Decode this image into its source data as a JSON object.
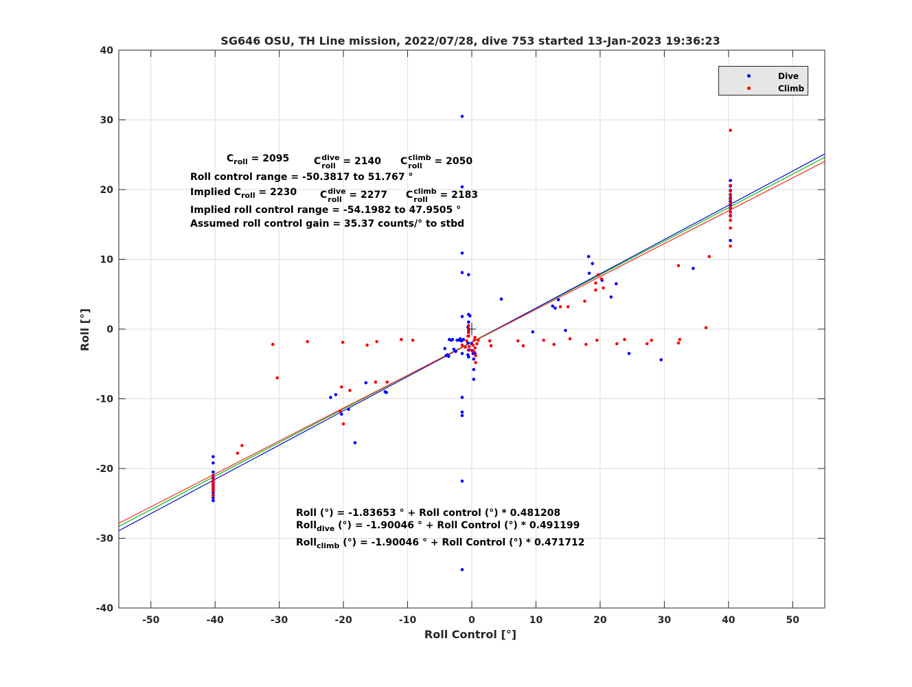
{
  "chart_data": {
    "type": "scatter",
    "title": "SG646 OSU, TH Line mission, 2022/07/28, dive 753 started 13-Jan-2023 19:36:23",
    "xlabel": "Roll Control [°]",
    "ylabel": "Roll [°]",
    "xlim": [
      -55,
      55
    ],
    "ylim": [
      -40,
      40
    ],
    "xticks": [
      -50,
      -40,
      -30,
      -20,
      -10,
      0,
      10,
      20,
      30,
      40,
      50
    ],
    "yticks": [
      -40,
      -30,
      -20,
      -10,
      0,
      10,
      20,
      30,
      40
    ],
    "grid": true,
    "legend_position": "top-right",
    "colors": {
      "dive": "#0000ff",
      "climb": "#ff0000",
      "fit_all": "#00c000",
      "fit_dive": "#0000cc",
      "fit_climb": "#ff2020",
      "axis": "#262626",
      "grid": "#dddddd",
      "legend_bg": "#e6e6e6"
    },
    "series": [
      {
        "name": "Dive",
        "color": "#0000ff",
        "points": [
          [
            -40.3,
            -18.3
          ],
          [
            -40.3,
            -19.2
          ],
          [
            -40.3,
            -20.5
          ],
          [
            -40.3,
            -21.0
          ],
          [
            -40.3,
            -21.4
          ],
          [
            -40.3,
            -21.8
          ],
          [
            -40.3,
            -22.2
          ],
          [
            -40.3,
            -22.6
          ],
          [
            -40.3,
            -23.0
          ],
          [
            -40.3,
            -23.4
          ],
          [
            -40.3,
            -23.8
          ],
          [
            -40.3,
            -24.2
          ],
          [
            -40.3,
            -24.6
          ],
          [
            -22.0,
            -9.8
          ],
          [
            -21.2,
            -9.4
          ],
          [
            -20.3,
            -12.2
          ],
          [
            -20.5,
            -11.8
          ],
          [
            -19.2,
            -11.5
          ],
          [
            -18.2,
            -16.3
          ],
          [
            -16.5,
            -7.7
          ],
          [
            -13.5,
            -9.0
          ],
          [
            -13.3,
            -9.1
          ],
          [
            -4.2,
            -2.8
          ],
          [
            -4.0,
            -3.8
          ],
          [
            -3.8,
            -3.7
          ],
          [
            -3.6,
            -3.9
          ],
          [
            -3.5,
            -1.5
          ],
          [
            -3.2,
            -1.6
          ],
          [
            -3.0,
            -1.5
          ],
          [
            -2.8,
            -2.9
          ],
          [
            -2.5,
            -3.2
          ],
          [
            -2.3,
            -1.6
          ],
          [
            -2.0,
            -1.6
          ],
          [
            -1.8,
            -1.4
          ],
          [
            -1.6,
            -1.7
          ],
          [
            -1.5,
            -3.5
          ],
          [
            -1.3,
            -1.5
          ],
          [
            -1.5,
            30.5
          ],
          [
            -1.5,
            20.4
          ],
          [
            -1.5,
            10.9
          ],
          [
            -1.5,
            8.1
          ],
          [
            -0.5,
            7.8
          ],
          [
            -1.5,
            1.8
          ],
          [
            -0.5,
            2.1
          ],
          [
            -0.3,
            1.9
          ],
          [
            -0.5,
            1.0
          ],
          [
            -0.6,
            0.3
          ],
          [
            -0.5,
            -0.3
          ],
          [
            -0.5,
            -1.0
          ],
          [
            -0.6,
            -2.0
          ],
          [
            -0.5,
            -3.0
          ],
          [
            -0.6,
            -3.7
          ],
          [
            -0.5,
            -4.0
          ],
          [
            0.0,
            -2.1
          ],
          [
            0.1,
            -3.1
          ],
          [
            0.2,
            -3.5
          ],
          [
            0.3,
            -4.3
          ],
          [
            0.3,
            -5.8
          ],
          [
            0.3,
            -7.2
          ],
          [
            0.5,
            -3.5
          ],
          [
            -1.5,
            -9.8
          ],
          [
            -1.5,
            -11.9
          ],
          [
            -1.5,
            -12.4
          ],
          [
            -1.5,
            -21.8
          ],
          [
            -1.5,
            -34.5
          ],
          [
            4.6,
            4.3
          ],
          [
            9.5,
            -0.4
          ],
          [
            12.6,
            3.3
          ],
          [
            13.0,
            3.0
          ],
          [
            13.5,
            4.2
          ],
          [
            14.6,
            -0.2
          ],
          [
            18.2,
            10.4
          ],
          [
            18.8,
            9.4
          ],
          [
            18.3,
            8.0
          ],
          [
            20.3,
            7.0
          ],
          [
            21.7,
            4.6
          ],
          [
            22.5,
            6.5
          ],
          [
            24.5,
            -3.5
          ],
          [
            29.5,
            -4.4
          ],
          [
            34.5,
            8.7
          ],
          [
            40.3,
            21.3
          ],
          [
            40.3,
            20.5
          ],
          [
            40.3,
            19.9
          ],
          [
            40.3,
            19.3
          ],
          [
            40.3,
            18.8
          ],
          [
            40.3,
            18.3
          ],
          [
            40.3,
            17.8
          ],
          [
            40.3,
            17.3
          ],
          [
            40.3,
            16.8
          ],
          [
            40.3,
            16.3
          ],
          [
            40.3,
            12.7
          ]
        ]
      },
      {
        "name": "Climb",
        "color": "#ff0000",
        "points": [
          [
            -40.3,
            -21.1
          ],
          [
            -40.3,
            -21.6
          ],
          [
            -40.3,
            -22.0
          ],
          [
            -40.3,
            -22.4
          ],
          [
            -40.3,
            -22.8
          ],
          [
            -40.3,
            -23.2
          ],
          [
            -40.3,
            -23.9
          ],
          [
            -36.5,
            -17.8
          ],
          [
            -35.8,
            -16.7
          ],
          [
            -31.0,
            -2.2
          ],
          [
            -30.3,
            -7.0
          ],
          [
            -25.6,
            -1.8
          ],
          [
            -20.3,
            -8.3
          ],
          [
            -20.5,
            -11.8
          ],
          [
            -20.1,
            -1.9
          ],
          [
            -19.0,
            -8.8
          ],
          [
            -20.0,
            -13.6
          ],
          [
            -16.3,
            -2.3
          ],
          [
            -15.0,
            -7.6
          ],
          [
            -14.8,
            -1.8
          ],
          [
            -13.2,
            -7.6
          ],
          [
            -11.0,
            -1.5
          ],
          [
            -9.2,
            -1.6
          ],
          [
            -1.5,
            -2.3
          ],
          [
            -1.0,
            -2.6
          ],
          [
            -0.8,
            -1.7
          ],
          [
            -0.6,
            -1.0
          ],
          [
            -0.5,
            -0.5
          ],
          [
            -0.5,
            0.0
          ],
          [
            -0.5,
            0.5
          ],
          [
            -0.4,
            -2.5
          ],
          [
            -0.3,
            -3.0
          ],
          [
            0.2,
            -2.3
          ],
          [
            0.3,
            -3.2
          ],
          [
            0.4,
            -1.6
          ],
          [
            0.5,
            -1.2
          ],
          [
            0.5,
            -2.7
          ],
          [
            0.6,
            -3.8
          ],
          [
            0.6,
            -4.8
          ],
          [
            0.8,
            -2.1
          ],
          [
            1.0,
            -1.6
          ],
          [
            2.8,
            -1.7
          ],
          [
            3.0,
            -2.4
          ],
          [
            7.2,
            -1.7
          ],
          [
            8.0,
            -2.4
          ],
          [
            11.2,
            -1.6
          ],
          [
            12.8,
            -2.2
          ],
          [
            13.8,
            3.2
          ],
          [
            15.0,
            3.2
          ],
          [
            15.3,
            -1.4
          ],
          [
            17.6,
            4.0
          ],
          [
            17.8,
            -2.2
          ],
          [
            19.3,
            5.6
          ],
          [
            19.5,
            -1.6
          ],
          [
            19.7,
            7.8
          ],
          [
            20.2,
            7.2
          ],
          [
            20.5,
            5.9
          ],
          [
            19.3,
            6.6
          ],
          [
            22.6,
            -2.1
          ],
          [
            23.8,
            -1.5
          ],
          [
            27.3,
            -2.1
          ],
          [
            28.0,
            -1.6
          ],
          [
            32.2,
            -2.0
          ],
          [
            32.4,
            -1.5
          ],
          [
            32.2,
            9.1
          ],
          [
            36.5,
            0.2
          ],
          [
            37.0,
            10.4
          ],
          [
            40.3,
            28.5
          ],
          [
            40.3,
            20.6
          ],
          [
            40.3,
            19.8
          ],
          [
            40.3,
            19.2
          ],
          [
            40.3,
            18.6
          ],
          [
            40.3,
            18.0
          ],
          [
            40.3,
            17.4
          ],
          [
            40.3,
            16.8
          ],
          [
            40.3,
            16.2
          ],
          [
            40.3,
            15.6
          ],
          [
            40.3,
            14.5
          ],
          [
            40.3,
            11.9
          ]
        ]
      }
    ],
    "fits": [
      {
        "label": "all",
        "color": "#00c000",
        "intercept": -1.83653,
        "slope": 0.481208
      },
      {
        "label": "dive",
        "color": "#0000cc",
        "intercept": -1.90046,
        "slope": 0.491199
      },
      {
        "label": "climb",
        "color": "#ff2020",
        "intercept": -1.90046,
        "slope": 0.471712
      }
    ],
    "center_marker": {
      "x": 0,
      "y": 0
    },
    "annotations": {
      "c_roll": "C",
      "c_roll_sub": "roll",
      "c_roll_val": " = 2095",
      "c_dive_sup": "dive",
      "c_dive_val": " = 2140",
      "c_climb_sup": "climb",
      "c_climb_val": " = 2050",
      "range_line": "Roll control range = -50.3817 to 51.767 °",
      "implied_prefix": "Implied C",
      "implied_val": " = 2230",
      "implied_dive_val": " = 2277",
      "implied_climb_val": " = 2183",
      "implied_range": "Implied roll control range = -54.1982 to 47.9505 °",
      "gain": "Assumed roll control gain = 35.37 counts/° to stbd",
      "eq_all": "Roll (°) = -1.83653 ° + Roll control (°) * 0.481208",
      "eq_dive_prefix": "Roll",
      "eq_dive_sub": "dive",
      "eq_dive_rest": " (°) = -1.90046 ° + Roll Control (°) * 0.491199",
      "eq_climb_prefix": "Roll",
      "eq_climb_sub": "climb",
      "eq_climb_rest": " (°) = -1.90046 ° + Roll Control (°) * 0.471712"
    }
  }
}
